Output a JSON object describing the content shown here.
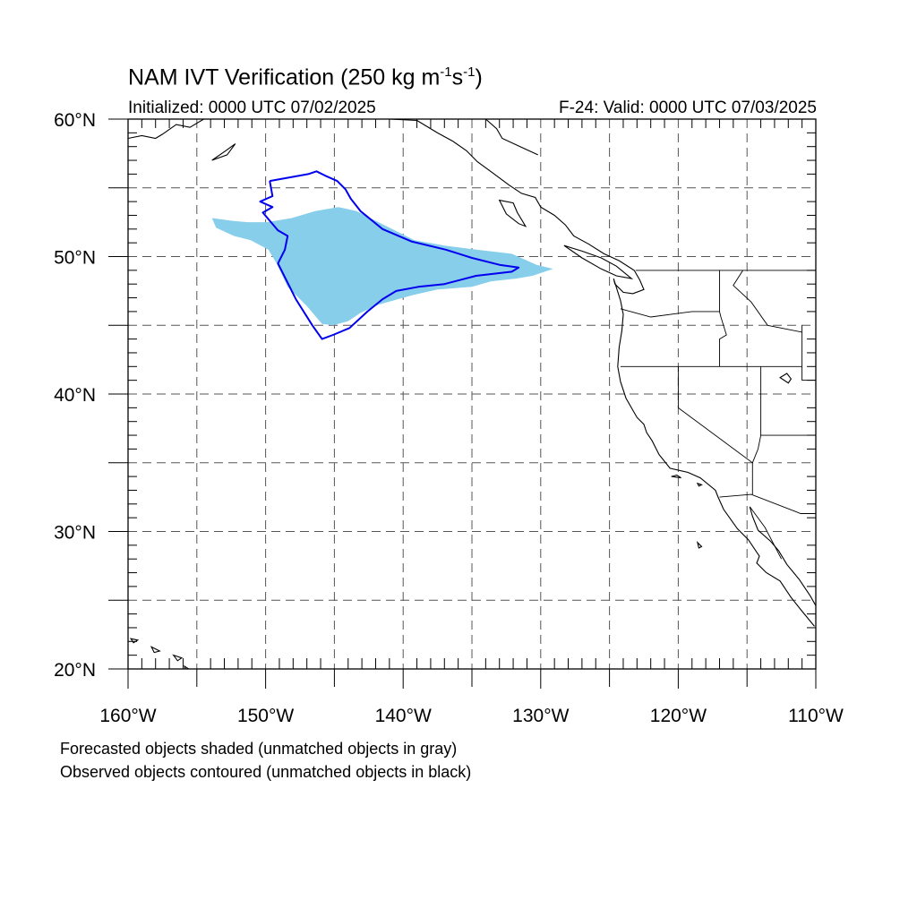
{
  "title": {
    "main": "NAM IVT Verification (250 kg m",
    "exp1": "-1",
    "mid": "s",
    "exp2": "-1",
    "end": ")"
  },
  "subtitle_left": "Initialized: 0000 UTC 07/02/2025",
  "subtitle_right": "F-24: Valid: 0000 UTC 07/03/2025",
  "captions": [
    "Forecasted objects shaded (unmatched objects in gray)",
    "Observed objects contoured (unmatched objects in black)"
  ],
  "map": {
    "lon_range": [
      -160,
      -110
    ],
    "lat_range": [
      20,
      60
    ],
    "grid": true,
    "lon_ticks": [
      {
        "value": -160,
        "label": "160°W"
      },
      {
        "value": -150,
        "label": "150°W"
      },
      {
        "value": -140,
        "label": "140°W"
      },
      {
        "value": -130,
        "label": "130°W"
      },
      {
        "value": -120,
        "label": "120°W"
      },
      {
        "value": -110,
        "label": "110°W"
      }
    ],
    "lat_ticks": [
      {
        "value": 20,
        "label": "20°N"
      },
      {
        "value": 30,
        "label": "30°N"
      },
      {
        "value": 40,
        "label": "40°N"
      },
      {
        "value": 50,
        "label": "50°N"
      },
      {
        "value": 60,
        "label": "60°N"
      }
    ],
    "colors": {
      "forecast_fill": "#87ceeb",
      "observed_contour": "#0000ee",
      "coastline": "#000000",
      "grid": "#555555"
    },
    "forecast_object": [
      [
        -153.9,
        52.8
      ],
      [
        -152.4,
        52.6
      ],
      [
        -151.3,
        52.5
      ],
      [
        -149.9,
        52.5
      ],
      [
        -148.1,
        52.8
      ],
      [
        -146.4,
        53.3
      ],
      [
        -144.7,
        53.6
      ],
      [
        -143.4,
        53.3
      ],
      [
        -141.2,
        52.2
      ],
      [
        -139.2,
        51.2
      ],
      [
        -137.0,
        50.8
      ],
      [
        -134.7,
        50.5
      ],
      [
        -132.1,
        50.2
      ],
      [
        -130.3,
        49.4
      ],
      [
        -129.1,
        49.1
      ],
      [
        -130.6,
        48.6
      ],
      [
        -131.8,
        48.4
      ],
      [
        -133.6,
        48.2
      ],
      [
        -135.0,
        47.8
      ],
      [
        -137.5,
        47.6
      ],
      [
        -139.3,
        47.2
      ],
      [
        -141.8,
        46.5
      ],
      [
        -143.1,
        45.9
      ],
      [
        -144.0,
        45.3
      ],
      [
        -145.1,
        45.0
      ],
      [
        -145.9,
        45.1
      ],
      [
        -147.0,
        46.4
      ],
      [
        -148.4,
        47.8
      ],
      [
        -149.2,
        49.5
      ],
      [
        -149.8,
        50.5
      ],
      [
        -151.1,
        51.2
      ],
      [
        -152.3,
        51.5
      ],
      [
        -153.6,
        52.1
      ],
      [
        -153.9,
        52.8
      ]
    ],
    "observed_object": [
      [
        -149.7,
        55.5
      ],
      [
        -146.9,
        56.0
      ],
      [
        -146.3,
        56.2
      ],
      [
        -145.7,
        55.9
      ],
      [
        -144.8,
        55.5
      ],
      [
        -144.2,
        54.9
      ],
      [
        -143.8,
        54.2
      ],
      [
        -143.1,
        53.3
      ],
      [
        -141.5,
        52.0
      ],
      [
        -139.4,
        51.1
      ],
      [
        -136.9,
        50.5
      ],
      [
        -135.0,
        49.9
      ],
      [
        -133.0,
        49.4
      ],
      [
        -131.6,
        49.2
      ],
      [
        -132.1,
        48.9
      ],
      [
        -134.7,
        48.6
      ],
      [
        -137.0,
        48.0
      ],
      [
        -138.9,
        47.8
      ],
      [
        -140.5,
        47.5
      ],
      [
        -141.5,
        46.9
      ],
      [
        -142.6,
        46.0
      ],
      [
        -143.9,
        44.8
      ],
      [
        -145.1,
        44.3
      ],
      [
        -145.9,
        44.0
      ],
      [
        -146.6,
        45.0
      ],
      [
        -147.8,
        46.9
      ],
      [
        -149.1,
        49.5
      ],
      [
        -148.6,
        50.5
      ],
      [
        -148.4,
        51.5
      ],
      [
        -149.1,
        51.9
      ],
      [
        -150.2,
        53.2
      ],
      [
        -149.5,
        53.6
      ],
      [
        -150.4,
        54.0
      ],
      [
        -149.5,
        54.4
      ],
      [
        -149.7,
        55.5
      ]
    ],
    "coastline_mainland": [
      [
        -139.0,
        59.9
      ],
      [
        -137.5,
        59.0
      ],
      [
        -136.4,
        58.4
      ],
      [
        -135.4,
        57.7
      ],
      [
        -134.6,
        56.9
      ],
      [
        -133.5,
        56.1
      ],
      [
        -132.3,
        55.2
      ],
      [
        -131.4,
        54.6
      ],
      [
        -130.4,
        54.3
      ],
      [
        -130.0,
        53.6
      ],
      [
        -129.0,
        53.0
      ],
      [
        -128.2,
        52.3
      ],
      [
        -127.6,
        51.5
      ],
      [
        -126.5,
        50.9
      ],
      [
        -125.4,
        50.2
      ],
      [
        -124.3,
        49.7
      ],
      [
        -123.2,
        49.0
      ],
      [
        -122.8,
        48.3
      ],
      [
        -122.5,
        47.6
      ],
      [
        -123.3,
        47.3
      ],
      [
        -124.0,
        47.4
      ],
      [
        -124.6,
        48.0
      ],
      [
        -124.7,
        48.4
      ],
      [
        -124.2,
        46.8
      ],
      [
        -124.0,
        45.8
      ],
      [
        -124.1,
        44.6
      ],
      [
        -124.3,
        43.4
      ],
      [
        -124.4,
        42.0
      ],
      [
        -124.2,
        40.9
      ],
      [
        -123.8,
        39.7
      ],
      [
        -123.0,
        38.3
      ],
      [
        -122.5,
        37.8
      ],
      [
        -122.3,
        37.2
      ],
      [
        -121.9,
        36.6
      ],
      [
        -121.4,
        35.6
      ],
      [
        -120.6,
        34.6
      ],
      [
        -119.3,
        34.3
      ],
      [
        -118.4,
        33.9
      ],
      [
        -117.3,
        33.0
      ],
      [
        -117.1,
        32.5
      ],
      [
        -116.7,
        31.6
      ],
      [
        -116.2,
        30.9
      ],
      [
        -115.7,
        30.2
      ],
      [
        -114.9,
        29.4
      ],
      [
        -114.1,
        28.2
      ],
      [
        -114.3,
        27.7
      ],
      [
        -113.6,
        27.0
      ],
      [
        -112.6,
        26.4
      ],
      [
        -111.8,
        25.2
      ],
      [
        -111.0,
        24.2
      ],
      [
        -110.1,
        23.1
      ]
    ],
    "coastline_gulf": [
      [
        -114.8,
        31.8
      ],
      [
        -114.6,
        31.1
      ],
      [
        -114.2,
        30.1
      ],
      [
        -113.3,
        29.3
      ],
      [
        -112.7,
        28.6
      ],
      [
        -112.1,
        27.6
      ],
      [
        -111.2,
        26.5
      ],
      [
        -110.4,
        25.3
      ],
      [
        -110.0,
        24.6
      ]
    ],
    "coastline_yukon": [
      [
        -134.0,
        60.0
      ],
      [
        -133.2,
        59.3
      ],
      [
        -132.8,
        58.6
      ],
      [
        -131.5,
        58.0
      ],
      [
        -130.2,
        57.4
      ]
    ],
    "coastline_alaska": [
      [
        -160.0,
        58.6
      ],
      [
        -159.0,
        58.8
      ],
      [
        -158.0,
        58.6
      ],
      [
        -157.5,
        58.9
      ],
      [
        -156.5,
        59.6
      ],
      [
        -155.5,
        59.4
      ],
      [
        -154.5,
        60.0
      ]
    ],
    "islands": [
      [
        [
          -153.9,
          57.0
        ],
        [
          -152.9,
          57.7
        ],
        [
          -152.2,
          58.2
        ],
        [
          -152.8,
          57.4
        ],
        [
          -153.9,
          57.0
        ]
      ],
      [
        [
          -133.0,
          54.1
        ],
        [
          -132.0,
          53.9
        ],
        [
          -131.7,
          53.2
        ],
        [
          -131.1,
          52.2
        ],
        [
          -131.6,
          52.4
        ],
        [
          -132.5,
          53.1
        ],
        [
          -133.0,
          54.1
        ]
      ],
      [
        [
          -128.3,
          50.8
        ],
        [
          -127.0,
          50.4
        ],
        [
          -125.6,
          49.9
        ],
        [
          -124.5,
          49.3
        ],
        [
          -123.4,
          48.4
        ],
        [
          -124.5,
          48.6
        ],
        [
          -125.6,
          49.1
        ],
        [
          -127.0,
          49.9
        ],
        [
          -128.3,
          50.8
        ]
      ],
      [
        [
          -120.5,
          34.0
        ],
        [
          -119.8,
          33.9
        ],
        [
          -120.1,
          34.1
        ],
        [
          -120.5,
          34.0
        ]
      ],
      [
        [
          -118.6,
          33.5
        ],
        [
          -118.3,
          33.4
        ],
        [
          -118.5,
          33.3
        ],
        [
          -118.6,
          33.5
        ]
      ],
      [
        [
          -155.9,
          20.2
        ],
        [
          -155.0,
          19.6
        ],
        [
          -154.8,
          19.2
        ],
        [
          -155.6,
          19.0
        ],
        [
          -155.9,
          20.2
        ]
      ],
      [
        [
          -156.7,
          21.0
        ],
        [
          -156.1,
          20.8
        ],
        [
          -156.4,
          20.6
        ],
        [
          -156.7,
          21.0
        ]
      ],
      [
        [
          -158.3,
          21.6
        ],
        [
          -157.7,
          21.3
        ],
        [
          -158.1,
          21.2
        ],
        [
          -158.3,
          21.6
        ]
      ],
      [
        [
          -159.8,
          22.2
        ],
        [
          -159.3,
          22.1
        ],
        [
          -159.6,
          21.9
        ],
        [
          -159.8,
          22.2
        ]
      ],
      [
        [
          -118.6,
          29.2
        ],
        [
          -118.3,
          28.9
        ],
        [
          -118.5,
          28.8
        ],
        [
          -118.6,
          29.2
        ]
      ],
      [
        [
          -112.1,
          41.5
        ],
        [
          -112.6,
          41.2
        ],
        [
          -112.0,
          40.8
        ],
        [
          -111.8,
          41.1
        ],
        [
          -112.1,
          41.5
        ]
      ]
    ],
    "borders": [
      [
        [
          -123.1,
          49.0
        ],
        [
          -110.0,
          49.0
        ]
      ],
      [
        [
          -141.0,
          60.0
        ],
        [
          -139.0,
          59.9
        ]
      ],
      [
        [
          -117.0,
          32.5
        ],
        [
          -114.7,
          32.7
        ],
        [
          -111.1,
          31.3
        ],
        [
          -110.0,
          31.3
        ]
      ],
      [
        [
          -117.0,
          49.0
        ],
        [
          -117.0,
          46.0
        ],
        [
          -116.9,
          45.6
        ]
      ],
      [
        [
          -124.2,
          46.2
        ],
        [
          -122.0,
          45.6
        ],
        [
          -119.0,
          46.0
        ],
        [
          -117.0,
          46.0
        ]
      ],
      [
        [
          -116.9,
          45.6
        ],
        [
          -116.5,
          44.3
        ],
        [
          -117.0,
          44.0
        ],
        [
          -117.0,
          42.0
        ]
      ],
      [
        [
          -124.2,
          42.0
        ],
        [
          -111.0,
          42.0
        ]
      ],
      [
        [
          -120.0,
          42.0
        ],
        [
          -120.0,
          39.0
        ],
        [
          -114.6,
          35.0
        ],
        [
          -114.6,
          32.7
        ]
      ],
      [
        [
          -115.3,
          49.0
        ],
        [
          -116.0,
          47.9
        ],
        [
          -114.7,
          46.7
        ],
        [
          -113.5,
          45.0
        ],
        [
          -111.0,
          44.5
        ]
      ],
      [
        [
          -114.0,
          42.0
        ],
        [
          -114.0,
          37.0
        ],
        [
          -114.2,
          36.0
        ],
        [
          -114.6,
          35.0
        ]
      ],
      [
        [
          -111.0,
          45.0
        ],
        [
          -111.0,
          41.0
        ],
        [
          -110.0,
          41.0
        ]
      ],
      [
        [
          -114.0,
          37.0
        ],
        [
          -110.0,
          37.0
        ]
      ],
      [
        [
          -114.8,
          31.8
        ],
        [
          -113.7,
          30.3
        ],
        [
          -112.5,
          28.0
        ]
      ]
    ]
  }
}
